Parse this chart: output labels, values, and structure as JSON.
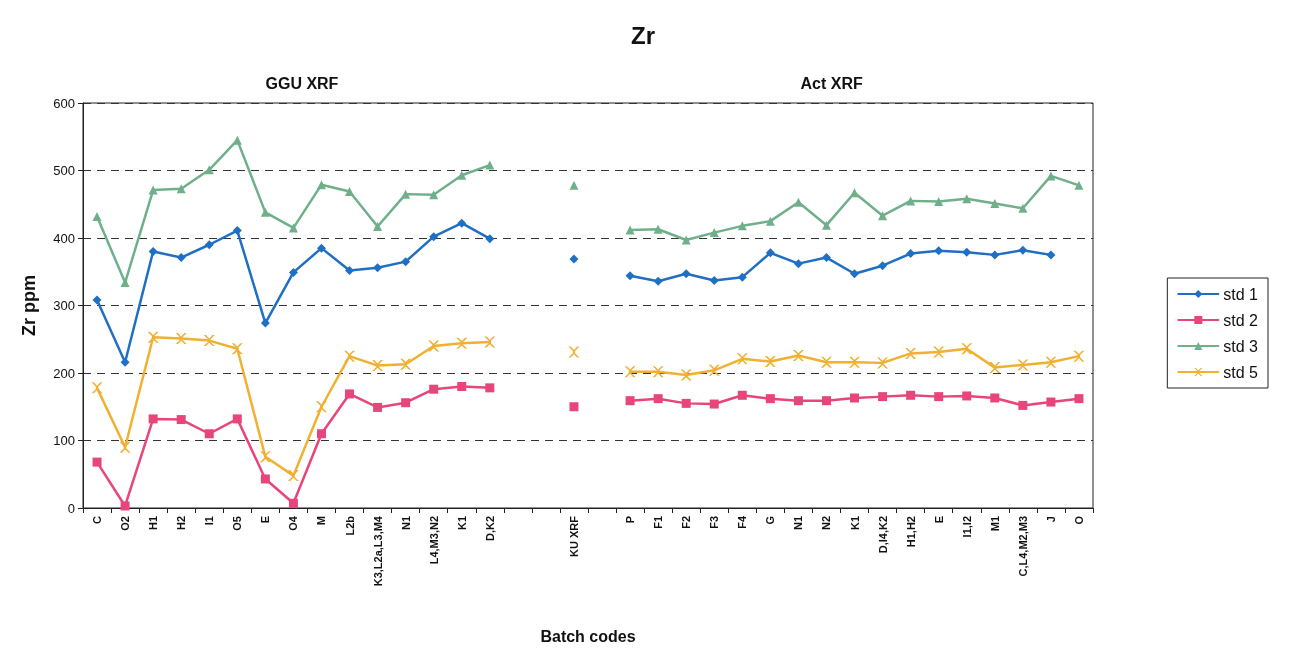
{
  "chart_data": {
    "type": "line",
    "title": "Zr",
    "xlabel": "Batch codes",
    "ylabel": "Zr ppm",
    "annotations": [
      "GGU XRF",
      "Act XRF"
    ],
    "categories": [
      "C",
      "O2",
      "H1",
      "H2",
      "I1",
      "O5",
      "E",
      "O4",
      "M",
      "L2b",
      "K3,L2a,L3,M4",
      "N1",
      "L4,M3,N2",
      "K1",
      "D,K2",
      null,
      null,
      "KU XRF",
      null,
      "P",
      "F1",
      "F2",
      "F3",
      "F4",
      "G",
      "N1",
      "N2",
      "K1",
      "D,I4,K2",
      "H1,H2",
      "E",
      "I1,I2",
      "M1",
      "C,L4,M2,M3",
      "J",
      "O"
    ],
    "series": [
      {
        "name": "std 1",
        "color": "#1f6fc5",
        "marker": "diamond",
        "values": [
          308,
          216,
          380,
          371,
          390,
          411,
          274,
          349,
          385,
          352,
          356,
          365,
          402,
          422,
          399,
          null,
          null,
          369,
          null,
          344,
          336,
          347,
          337,
          342,
          378,
          362,
          371,
          347,
          359,
          377,
          381,
          379,
          375,
          382,
          375,
          null
        ]
      },
      {
        "name": "std 2",
        "color": "#e8457a",
        "marker": "square",
        "values": [
          68,
          3,
          132,
          131,
          110,
          132,
          43,
          7,
          110,
          169,
          149,
          156,
          176,
          180,
          178,
          null,
          null,
          150,
          null,
          159,
          162,
          155,
          154,
          167,
          162,
          159,
          159,
          163,
          165,
          167,
          165,
          166,
          163,
          152,
          157,
          162
        ]
      },
      {
        "name": "std 3",
        "color": "#6fb08a",
        "marker": "triangle",
        "values": [
          432,
          334,
          471,
          473,
          501,
          545,
          438,
          415,
          479,
          469,
          417,
          465,
          464,
          493,
          508,
          null,
          null,
          478,
          null,
          412,
          413,
          397,
          408,
          418,
          425,
          453,
          419,
          467,
          433,
          455,
          454,
          458,
          451,
          444,
          492,
          478
        ]
      },
      {
        "name": "std 5",
        "color": "#f0b030",
        "marker": "cross",
        "values": [
          178,
          90,
          253,
          251,
          248,
          236,
          76,
          48,
          150,
          225,
          211,
          213,
          240,
          244,
          246,
          null,
          null,
          231,
          null,
          202,
          202,
          197,
          204,
          221,
          217,
          226,
          216,
          216,
          215,
          229,
          231,
          236,
          208,
          212,
          216,
          225
        ]
      }
    ],
    "ylim": [
      0,
      600
    ],
    "yticks": [
      0,
      100,
      200,
      300,
      400,
      500,
      600
    ],
    "grid": "y",
    "legend": "right",
    "line_style": "solid"
  }
}
